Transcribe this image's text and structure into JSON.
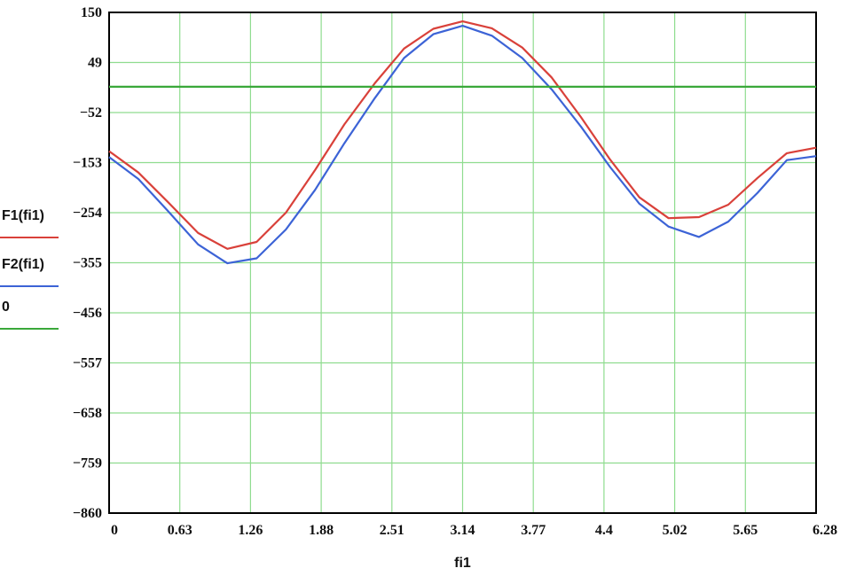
{
  "chart_data": {
    "type": "line",
    "xlabel": "fi1",
    "ylabel": "",
    "xlim": [
      0,
      6.28
    ],
    "ylim": [
      -860,
      150
    ],
    "x_ticks": [
      "0",
      "0.63",
      "1.26",
      "1.88",
      "2.51",
      "3.14",
      "3.77",
      "4.4",
      "5.02",
      "5.65",
      "6.28"
    ],
    "y_ticks": [
      "150",
      "49",
      "−52",
      "−153",
      "−254",
      "−355",
      "−456",
      "−557",
      "−658",
      "−759",
      "−860"
    ],
    "grid": true,
    "legend_position": "left",
    "series": [
      {
        "name": "F1(fi1)",
        "color": "#d9413a",
        "x": [
          0,
          0.26,
          0.52,
          0.79,
          1.05,
          1.31,
          1.57,
          1.83,
          2.09,
          2.36,
          2.62,
          2.88,
          3.14,
          3.4,
          3.67,
          3.93,
          4.19,
          4.45,
          4.71,
          4.97,
          5.24,
          5.5,
          5.76,
          6.02,
          6.28
        ],
        "y": [
          -130,
          -173,
          -232,
          -295,
          -327,
          -313,
          -254,
          -168,
          -76,
          7,
          77,
          117,
          132,
          118,
          79,
          19,
          -61,
          -147,
          -223,
          -265,
          -263,
          -238,
          -184,
          -134,
          -123
        ]
      },
      {
        "name": "F2(fi1)",
        "color": "#3c63d6",
        "x": [
          0,
          0.26,
          0.52,
          0.79,
          1.05,
          1.31,
          1.57,
          1.83,
          2.09,
          2.36,
          2.62,
          2.88,
          3.14,
          3.4,
          3.67,
          3.93,
          4.19,
          4.45,
          4.71,
          4.97,
          5.24,
          5.5,
          5.76,
          6.02,
          6.28
        ],
        "y": [
          -142,
          -186,
          -250,
          -318,
          -356,
          -346,
          -288,
          -208,
          -114,
          -23,
          58,
          106,
          123,
          103,
          58,
          -5,
          -80,
          -162,
          -236,
          -282,
          -303,
          -272,
          -214,
          -148,
          -140
        ]
      },
      {
        "name": "0",
        "color": "#3aa83a",
        "x": [
          0,
          6.28
        ],
        "y": [
          0,
          0
        ]
      }
    ]
  }
}
